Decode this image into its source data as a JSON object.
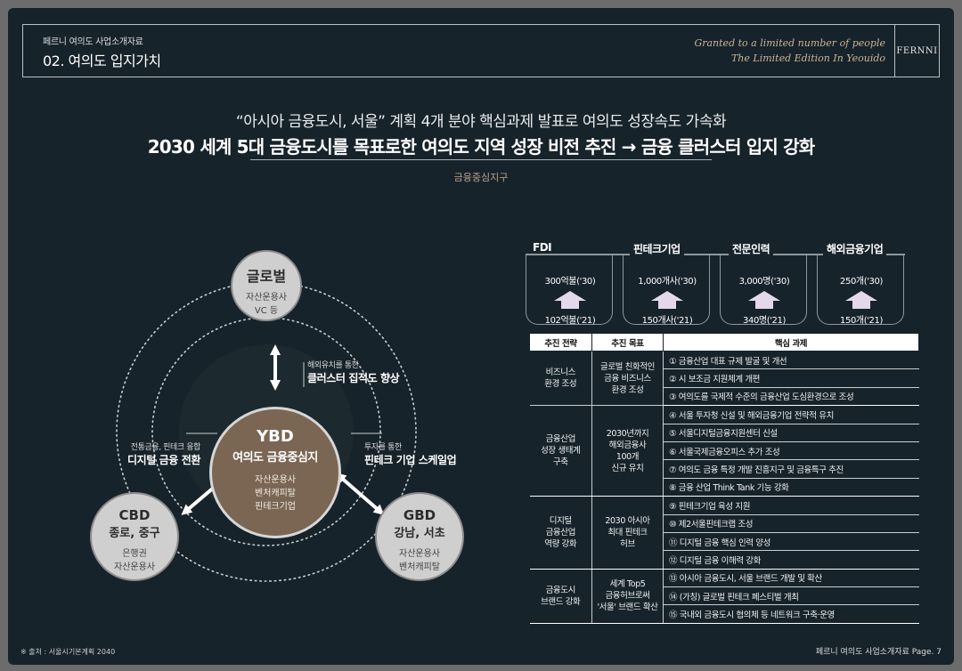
{
  "header": {
    "subtitle": "페르니 여의도 사업소개자료",
    "title": "02. 여의도 입지가치",
    "script_line1": "Granted to a limited number of people",
    "script_line2": "The Limited Edition In Yeouido",
    "logo": "FERNNI"
  },
  "headline": {
    "line1": "“아시아 금융도시, 서울” 계획 4개 분야 핵심과제 발표로 여의도 성장속도 가속화",
    "line2": "2030 세계 5대 금융도시를 목표로한 여의도 지역 성장 비전 추진 → 금융 클러스터 입지 강화",
    "tag": "금융중심지구"
  },
  "diagram": {
    "center": {
      "title": "YBD",
      "subtitle": "여의도 금융중심지",
      "lines": [
        "자산운용사",
        "벤처캐피탈",
        "핀테크기업"
      ]
    },
    "top": {
      "title": "글로벌",
      "lines": [
        "자산운용사",
        "VC 등"
      ]
    },
    "left": {
      "title": "CBD",
      "subtitle": "종로, 중구",
      "lines": [
        "은행권",
        "자산운용사"
      ]
    },
    "right": {
      "title": "GBD",
      "subtitle": "강남, 서초",
      "lines": [
        "자산운용사",
        "벤처캐피탈"
      ]
    },
    "link_top": {
      "small": "해외유치를 통한",
      "bold": "클러스터 집적도 향상"
    },
    "link_left": {
      "small": "전통금융, 핀테크 융합",
      "bold": "디지털 금융 전환"
    },
    "link_right": {
      "small": "투자를 통한",
      "bold": "핀테크 기업 스케일업"
    }
  },
  "kpis": [
    {
      "label": "FDI",
      "target": "300억불('30)",
      "base": "102억불('21)"
    },
    {
      "label": "핀테크기업",
      "target": "1,000개사('30)",
      "base": "150개사('21)"
    },
    {
      "label": "전문인력",
      "target": "3,000명('30)",
      "base": "340명('21)"
    },
    {
      "label": "해외금융기업",
      "target": "250개('30)",
      "base": "150개('21)"
    }
  ],
  "table": {
    "headers": [
      "추진 전략",
      "추진 목표",
      "핵심 과제"
    ],
    "groups": [
      {
        "strategy": [
          "비즈니스",
          "환경 조성"
        ],
        "goal": [
          "글로벌 친화적인",
          "금융 비즈니스",
          "환경 조성"
        ],
        "tasks": [
          "① 금융산업 대표 규제 발굴 및 개선",
          "② 시 보조금 지원체계 개편",
          "③ 여의도를 국제적 수준의 금융산업 도심환경으로 조성"
        ]
      },
      {
        "strategy": [
          "금융산업",
          "성장 생태계",
          "구축"
        ],
        "goal": [
          "2030년까지",
          "해외금융사",
          "100개",
          "신규 유치"
        ],
        "tasks": [
          "④ 서울 투자청 신설 및 해외금융기업 전략적 유치",
          "⑤ 서울디지털금융지원센터 신설",
          "⑥ 서울국제금융오피스 추가 조성",
          "⑦ 여의도 금융 특정 개발 진흥지구 및 금융특구 추진",
          "⑧ 금융 산업 Think Tank 기능 강화"
        ]
      },
      {
        "strategy": [
          "디지털",
          "금융산업",
          "역량 강화"
        ],
        "goal": [
          "2030 아시아",
          "최대 핀테크",
          "허브"
        ],
        "tasks": [
          "⑨ 핀테크기업 육성 지원",
          "⑩ 제2서울핀테크랩 조성",
          "⑪ 디지털 금융 핵심 인력 양성",
          "⑫ 디지털 금융 이해력 강화"
        ]
      },
      {
        "strategy": [
          "금융도시",
          "브랜드 강화"
        ],
        "goal": [
          "세계 Top5",
          "금융허브로써",
          "'서울' 브랜드 확산"
        ],
        "tasks": [
          "⑬ 아시아 금융도시, 서울 브랜드 개발 및 확산",
          "⑭ (가칭) 글로벌 핀테크 페스티벌 개최",
          "⑮ 국내외 금융도시 협의체 등 네트워크 구축·운영"
        ]
      }
    ]
  },
  "footer": {
    "source": "※ 출처 : 서울시기본계획 2040",
    "page": "페르니 여의도 사업소개자료 Page. 7"
  },
  "colors": {
    "background": "#17232a",
    "center_node": "#7a6652",
    "satellite_node": "#cfcfcf",
    "accent_text": "#b7a38a",
    "kpi_arrow": "#e3d8ec"
  }
}
